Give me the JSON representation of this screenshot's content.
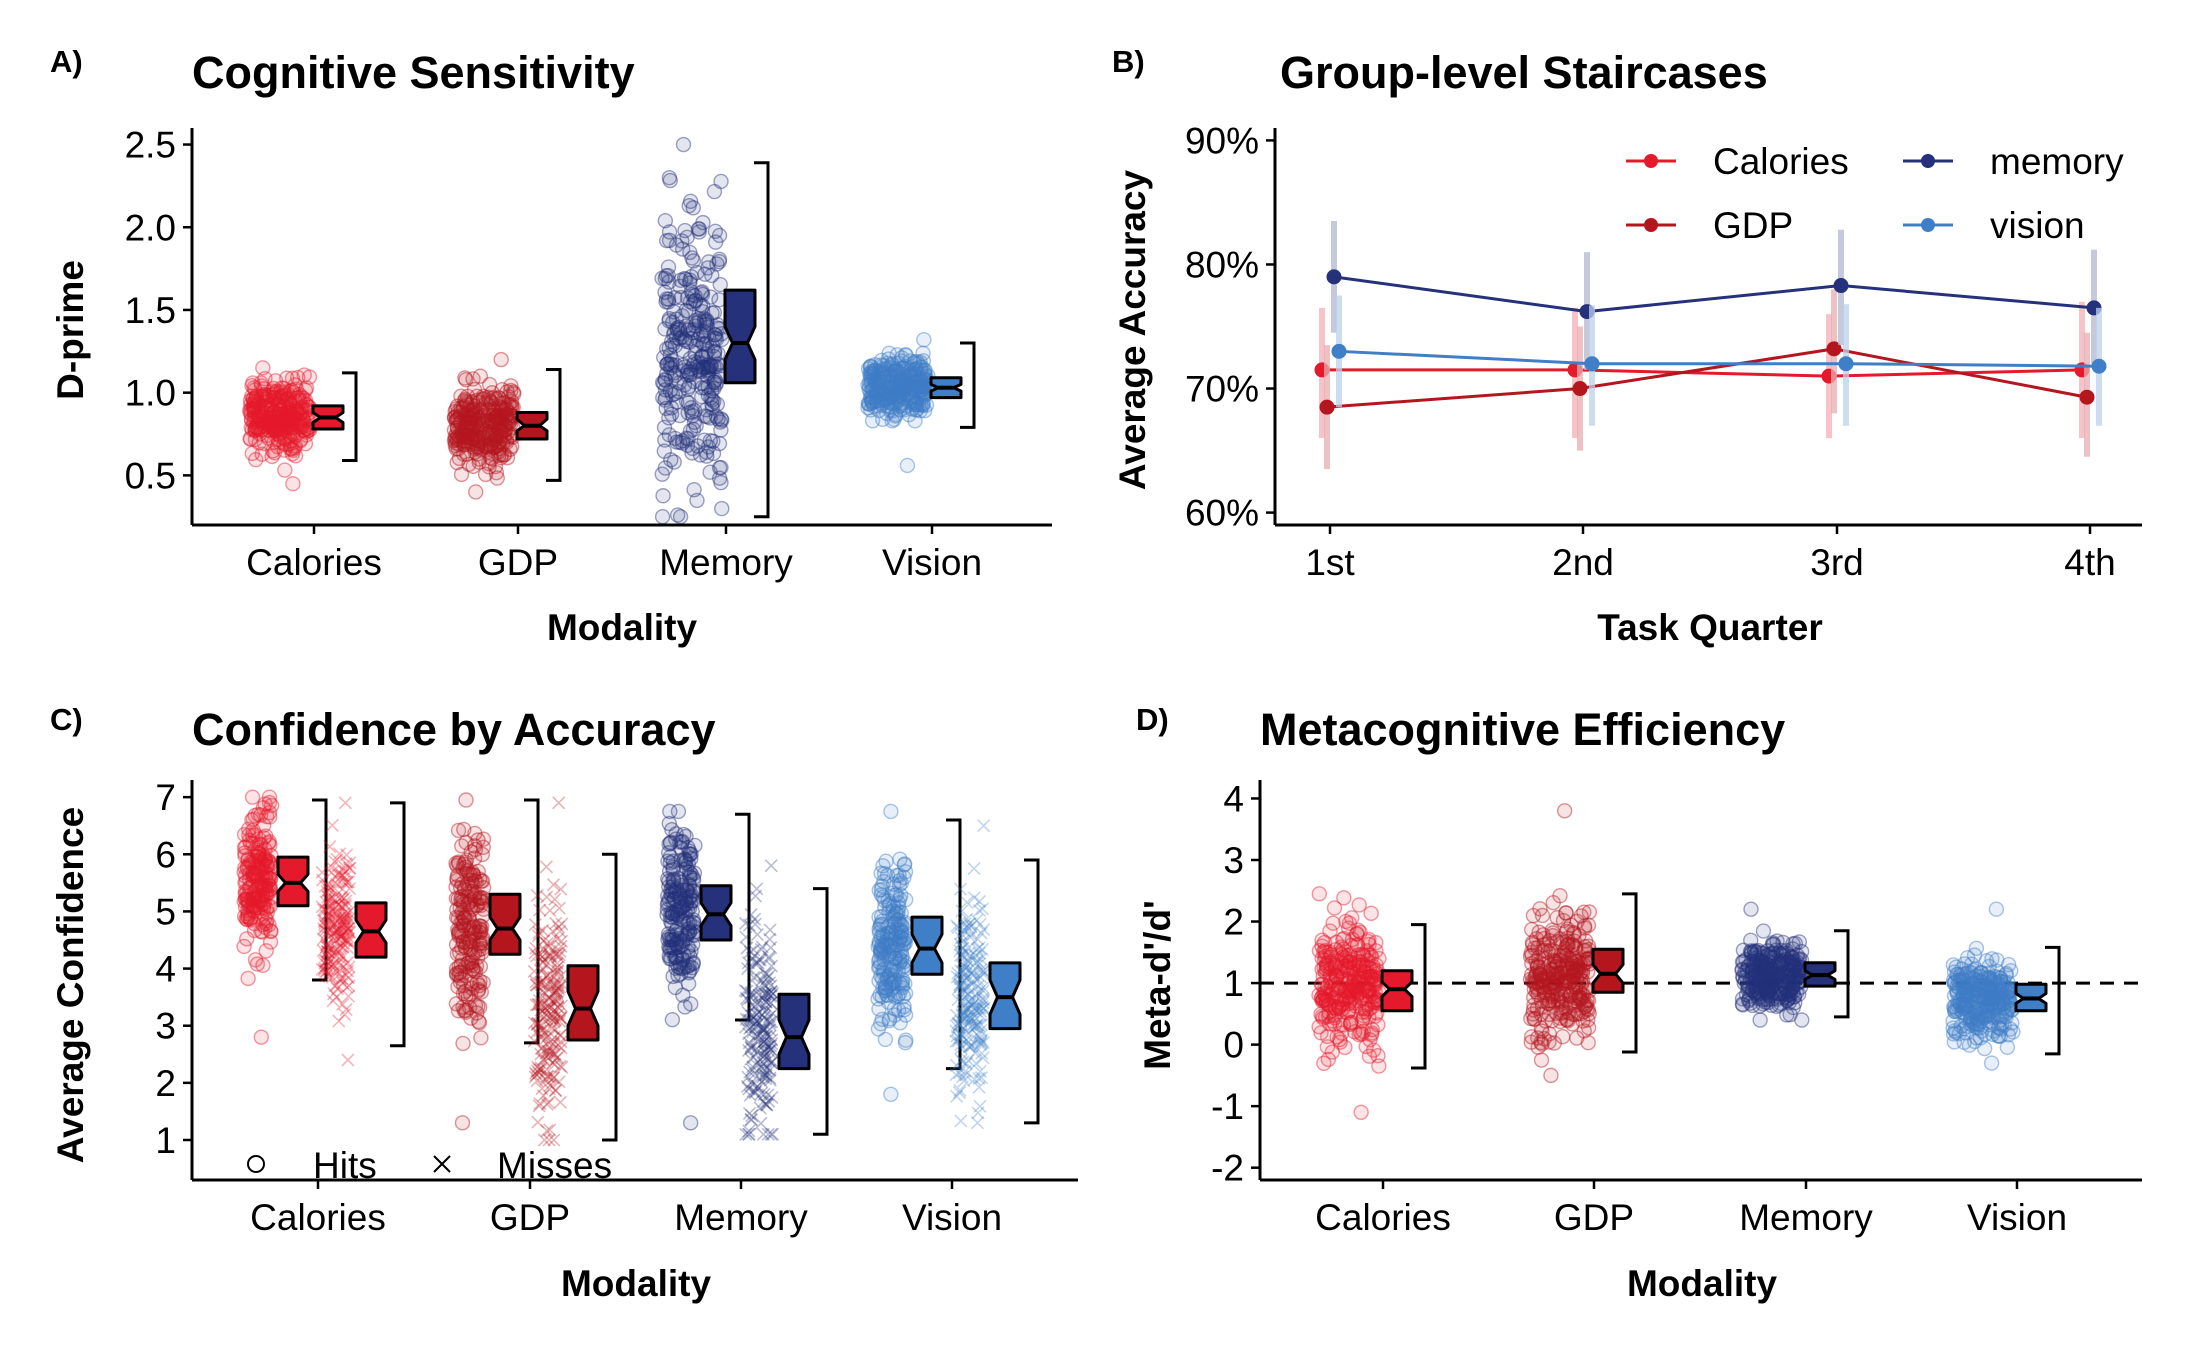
{
  "colors": {
    "calories": "#e41a2c",
    "gdp": "#b5161e",
    "memory": "#25317a",
    "vision": "#3f7fc7",
    "calories_light": "#f2a5ad",
    "gdp_light": "#e6a3a6",
    "memory_light": "#b3b9d8",
    "vision_light": "#b8cfe9",
    "axis": "#000000"
  },
  "panels": [
    {
      "letter": "A)",
      "title": "Cognitive Sensitivity",
      "xlabel": "Modality",
      "ylabel": "D-prime",
      "y_ticks": [
        "0.5",
        "1.0",
        "1.5",
        "2.0",
        "2.5"
      ],
      "x_ticks": [
        "Calories",
        "GDP",
        "Memory",
        "Vision"
      ]
    },
    {
      "letter": "B)",
      "title": "Group-level Staircases",
      "xlabel": "Task Quarter",
      "ylabel": "Average Accuracy",
      "y_ticks": [
        "60%",
        "70%",
        "80%",
        "90%"
      ],
      "x_ticks": [
        "1st",
        "2nd",
        "3rd",
        "4th"
      ],
      "legend": [
        "Calories",
        "GDP",
        "memory",
        "vision"
      ]
    },
    {
      "letter": "C)",
      "title": "Confidence by Accuracy",
      "xlabel": "Modality",
      "ylabel": "Average Confidence",
      "y_ticks": [
        "1",
        "2",
        "3",
        "4",
        "5",
        "6",
        "7"
      ],
      "x_ticks": [
        "Calories",
        "GDP",
        "Memory",
        "Vision"
      ],
      "legend": [
        "Hits",
        "Misses"
      ]
    },
    {
      "letter": "D)",
      "title": "Metacognitive Efficiency",
      "xlabel": "Modality",
      "ylabel": "Meta-d'/d'",
      "y_ticks": [
        "-2",
        "-1",
        "0",
        "1",
        "2",
        "3",
        "4"
      ],
      "x_ticks": [
        "Calories",
        "GDP",
        "Memory",
        "Vision"
      ]
    }
  ],
  "chart_data": [
    {
      "type": "scatter",
      "subtype": "jittered points with notched boxplot and range bracket",
      "title": "Cognitive Sensitivity",
      "xlabel": "Modality",
      "ylabel": "D-prime",
      "categories": [
        "Calories",
        "GDP",
        "Memory",
        "Vision"
      ],
      "ylim": [
        0.2,
        2.6
      ],
      "grid": false,
      "groups": [
        {
          "name": "Calories",
          "color_key": "calories",
          "q1": 0.78,
          "median": 0.85,
          "q3": 0.92,
          "notch_low": 0.82,
          "notch_high": 0.88,
          "whisker_low": 0.59,
          "whisker_high": 1.12,
          "point_min": 0.45,
          "point_max": 1.15,
          "n_points": 300
        },
        {
          "name": "GDP",
          "color_key": "gdp",
          "q1": 0.72,
          "median": 0.8,
          "q3": 0.88,
          "notch_low": 0.77,
          "notch_high": 0.84,
          "whisker_low": 0.47,
          "whisker_high": 1.14,
          "point_min": 0.4,
          "point_max": 1.2,
          "n_points": 300
        },
        {
          "name": "Memory",
          "color_key": "memory",
          "q1": 1.06,
          "median": 1.3,
          "q3": 1.62,
          "notch_low": 1.2,
          "notch_high": 1.4,
          "whisker_low": 0.25,
          "whisker_high": 2.39,
          "point_min": 0.25,
          "point_max": 2.5,
          "n_points": 300
        },
        {
          "name": "Vision",
          "color_key": "vision",
          "q1": 0.97,
          "median": 1.03,
          "q3": 1.09,
          "notch_low": 1.01,
          "notch_high": 1.05,
          "whisker_low": 0.79,
          "whisker_high": 1.3,
          "point_min": 0.56,
          "point_max": 1.32,
          "n_points": 300
        }
      ]
    },
    {
      "type": "line",
      "title": "Group-level Staircases",
      "xlabel": "Task Quarter",
      "ylabel": "Average Accuracy",
      "categories": [
        "1st",
        "2nd",
        "3rd",
        "4th"
      ],
      "ylim": [
        59,
        91
      ],
      "y_unit": "%",
      "grid": false,
      "legend_position": "top-right",
      "series": [
        {
          "name": "Calories",
          "color_key": "calories",
          "values": [
            71.5,
            71.5,
            71.0,
            71.5
          ],
          "error_low": [
            66.0,
            66.0,
            66.0,
            66.0
          ],
          "error_high": [
            76.5,
            76.5,
            76.0,
            77.0
          ]
        },
        {
          "name": "GDP",
          "color_key": "gdp",
          "values": [
            68.5,
            70.0,
            73.2,
            69.3
          ],
          "error_low": [
            63.5,
            65.0,
            68.0,
            64.5
          ],
          "error_high": [
            73.5,
            75.0,
            78.0,
            74.5
          ]
        },
        {
          "name": "memory",
          "color_key": "memory",
          "values": [
            79.0,
            76.2,
            78.3,
            76.5
          ],
          "error_low": [
            74.5,
            71.5,
            73.5,
            72.0
          ],
          "error_high": [
            83.5,
            81.0,
            82.8,
            81.2
          ]
        },
        {
          "name": "vision",
          "color_key": "vision",
          "values": [
            73.0,
            72.0,
            72.0,
            71.8
          ],
          "error_low": [
            68.5,
            67.0,
            67.0,
            67.0
          ],
          "error_high": [
            77.5,
            76.7,
            76.8,
            76.5
          ]
        }
      ]
    },
    {
      "type": "scatter",
      "subtype": "jittered points with notched boxplot and range bracket, split by accuracy",
      "title": "Confidence by Accuracy",
      "xlabel": "Modality",
      "ylabel": "Average Confidence",
      "categories": [
        "Calories",
        "GDP",
        "Memory",
        "Vision"
      ],
      "ylim": [
        0.3,
        7.3
      ],
      "grid": false,
      "legend_position": "bottom-left",
      "groups": [
        {
          "name": "Calories",
          "accuracy": "Hits",
          "color_key": "calories",
          "q1": 5.1,
          "median": 5.5,
          "q3": 5.95,
          "notch_low": 5.35,
          "notch_high": 5.65,
          "whisker_low": 3.8,
          "whisker_high": 6.95,
          "point_min": 2.8,
          "point_max": 7.0,
          "n_points": 200
        },
        {
          "name": "Calories",
          "accuracy": "Misses",
          "color_key": "calories",
          "q1": 4.2,
          "median": 4.65,
          "q3": 5.15,
          "notch_low": 4.45,
          "notch_high": 4.85,
          "whisker_low": 2.65,
          "whisker_high": 6.9,
          "point_min": 2.4,
          "point_max": 6.9,
          "n_points": 200
        },
        {
          "name": "GDP",
          "accuracy": "Hits",
          "color_key": "gdp",
          "q1": 4.25,
          "median": 4.7,
          "q3": 5.3,
          "notch_low": 4.5,
          "notch_high": 4.9,
          "whisker_low": 2.7,
          "whisker_high": 6.95,
          "point_min": 1.3,
          "point_max": 6.95,
          "n_points": 200
        },
        {
          "name": "GDP",
          "accuracy": "Misses",
          "color_key": "gdp",
          "q1": 2.75,
          "median": 3.3,
          "q3": 4.05,
          "notch_low": 3.0,
          "notch_high": 3.6,
          "whisker_low": 1.0,
          "whisker_high": 6.0,
          "point_min": 1.0,
          "point_max": 6.9,
          "n_points": 200
        },
        {
          "name": "Memory",
          "accuracy": "Hits",
          "color_key": "memory",
          "q1": 4.5,
          "median": 4.95,
          "q3": 5.45,
          "notch_low": 4.75,
          "notch_high": 5.15,
          "whisker_low": 3.1,
          "whisker_high": 6.7,
          "point_min": 1.3,
          "point_max": 6.75,
          "n_points": 200
        },
        {
          "name": "Memory",
          "accuracy": "Misses",
          "color_key": "memory",
          "q1": 2.25,
          "median": 2.8,
          "q3": 3.55,
          "notch_low": 2.5,
          "notch_high": 3.1,
          "whisker_low": 1.1,
          "whisker_high": 5.4,
          "point_min": 1.1,
          "point_max": 5.8,
          "n_points": 200
        },
        {
          "name": "Vision",
          "accuracy": "Hits",
          "color_key": "vision",
          "q1": 3.9,
          "median": 4.35,
          "q3": 4.9,
          "notch_low": 4.1,
          "notch_high": 4.6,
          "whisker_low": 2.25,
          "whisker_high": 6.6,
          "point_min": 1.8,
          "point_max": 6.75,
          "n_points": 200
        },
        {
          "name": "Vision",
          "accuracy": "Misses",
          "color_key": "vision",
          "q1": 2.95,
          "median": 3.5,
          "q3": 4.1,
          "notch_low": 3.2,
          "notch_high": 3.8,
          "whisker_low": 1.3,
          "whisker_high": 5.9,
          "point_min": 1.3,
          "point_max": 6.5,
          "n_points": 200
        }
      ]
    },
    {
      "type": "scatter",
      "subtype": "jittered points with notched boxplot, range bracket and dashed reference line",
      "title": "Metacognitive Efficiency",
      "xlabel": "Modality",
      "ylabel": "Meta-d'/d'",
      "categories": [
        "Calories",
        "GDP",
        "Memory",
        "Vision"
      ],
      "ylim": [
        -2.2,
        4.3
      ],
      "reference_line_y": 1,
      "grid": false,
      "groups": [
        {
          "name": "Calories",
          "color_key": "calories",
          "q1": 0.55,
          "median": 0.9,
          "q3": 1.2,
          "notch_low": 0.78,
          "notch_high": 1.02,
          "whisker_low": -0.38,
          "whisker_high": 1.95,
          "point_min": -1.1,
          "point_max": 2.45,
          "n_points": 300
        },
        {
          "name": "GDP",
          "color_key": "gdp",
          "q1": 0.85,
          "median": 1.15,
          "q3": 1.55,
          "notch_low": 1.0,
          "notch_high": 1.3,
          "whisker_low": -0.12,
          "whisker_high": 2.45,
          "point_min": -0.5,
          "point_max": 3.8,
          "n_points": 300
        },
        {
          "name": "Memory",
          "color_key": "memory",
          "q1": 0.95,
          "median": 1.13,
          "q3": 1.33,
          "notch_low": 1.06,
          "notch_high": 1.2,
          "whisker_low": 0.45,
          "whisker_high": 1.85,
          "point_min": 0.4,
          "point_max": 2.2,
          "n_points": 300
        },
        {
          "name": "Vision",
          "color_key": "vision",
          "q1": 0.55,
          "median": 0.75,
          "q3": 0.98,
          "notch_low": 0.67,
          "notch_high": 0.83,
          "whisker_low": -0.15,
          "whisker_high": 1.58,
          "point_min": -0.3,
          "point_max": 2.2,
          "n_points": 300
        }
      ]
    }
  ]
}
